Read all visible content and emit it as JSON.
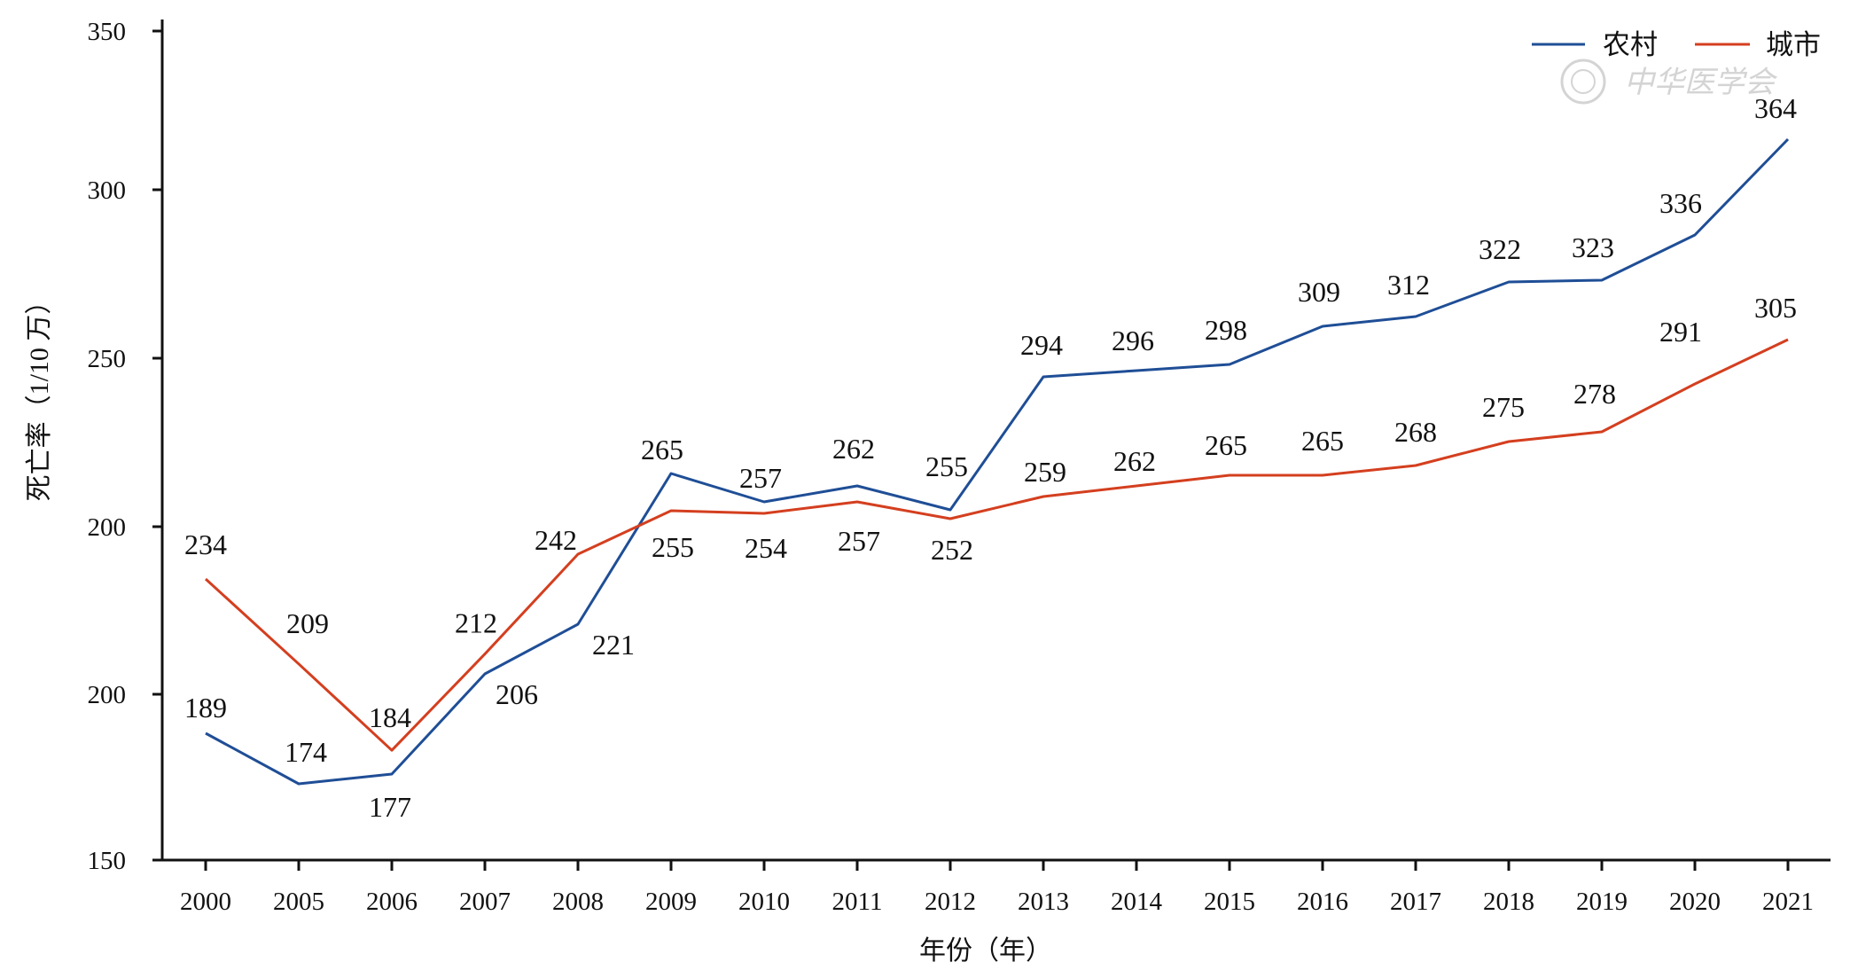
{
  "chart_data": {
    "type": "line",
    "categories": [
      "2000",
      "2005",
      "2006",
      "2007",
      "2008",
      "2009",
      "2010",
      "2011",
      "2012",
      "2013",
      "2014",
      "2015",
      "2016",
      "2017",
      "2018",
      "2019",
      "2020",
      "2021"
    ],
    "series": [
      {
        "name": "农村",
        "color": "#1f4e96",
        "values": [
          189,
          174,
          177,
          206,
          221,
          265,
          257,
          262,
          255,
          294,
          296,
          298,
          309,
          312,
          322,
          323,
          336,
          364
        ]
      },
      {
        "name": "城市",
        "color": "#d43f1f",
        "values": [
          234,
          209,
          184,
          212,
          242,
          255,
          254,
          257,
          252,
          259,
          262,
          265,
          265,
          268,
          275,
          278,
          291,
          305
        ]
      }
    ],
    "y_tick_labels": [
      "350",
      "300",
      "250",
      "200",
      "200",
      "150"
    ],
    "xlabel": "年份（年）",
    "ylabel": "死亡率（1/10 万）",
    "legend_position": "top-right",
    "grid": false
  },
  "watermark": {
    "text": "中华医学会"
  }
}
